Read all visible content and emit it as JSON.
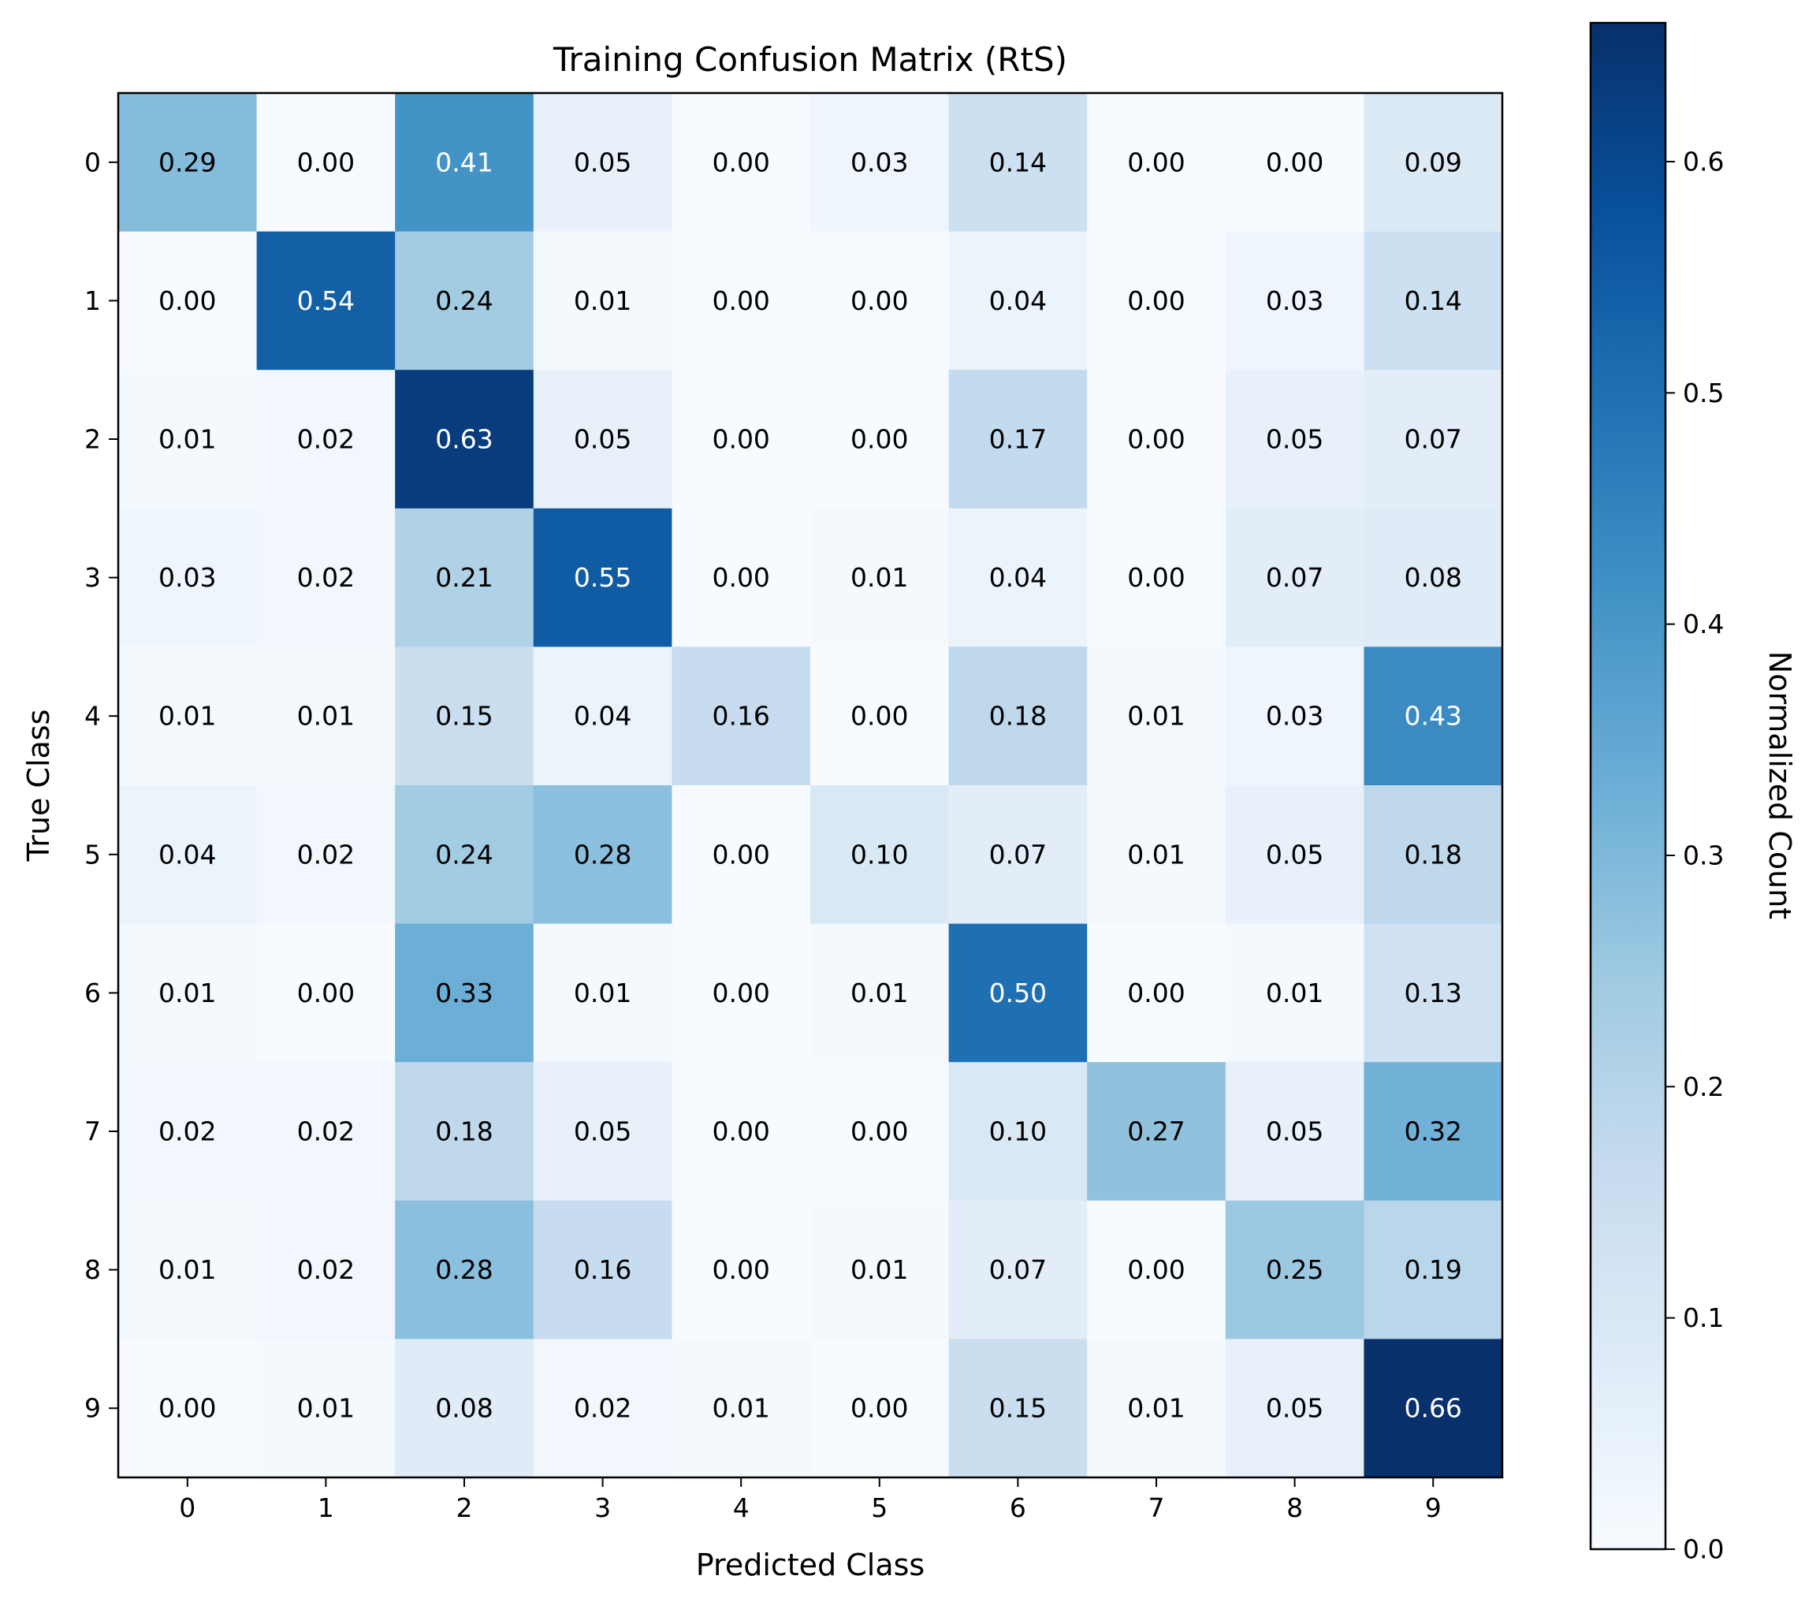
{
  "chart_data": {
    "type": "heatmap",
    "title": "Training Confusion Matrix (RtS)",
    "xlabel": "Predicted Class",
    "ylabel": "True Class",
    "x_categories": [
      "0",
      "1",
      "2",
      "3",
      "4",
      "5",
      "6",
      "7",
      "8",
      "9"
    ],
    "y_categories": [
      "0",
      "1",
      "2",
      "3",
      "4",
      "5",
      "6",
      "7",
      "8",
      "9"
    ],
    "values": [
      [
        0.29,
        0.0,
        0.41,
        0.05,
        0.0,
        0.03,
        0.14,
        0.0,
        0.0,
        0.09
      ],
      [
        0.0,
        0.54,
        0.24,
        0.01,
        0.0,
        0.0,
        0.04,
        0.0,
        0.03,
        0.14
      ],
      [
        0.01,
        0.02,
        0.63,
        0.05,
        0.0,
        0.0,
        0.17,
        0.0,
        0.05,
        0.07
      ],
      [
        0.03,
        0.02,
        0.21,
        0.55,
        0.0,
        0.01,
        0.04,
        0.0,
        0.07,
        0.08
      ],
      [
        0.01,
        0.01,
        0.15,
        0.04,
        0.16,
        0.0,
        0.18,
        0.01,
        0.03,
        0.43
      ],
      [
        0.04,
        0.02,
        0.24,
        0.28,
        0.0,
        0.1,
        0.07,
        0.01,
        0.05,
        0.18
      ],
      [
        0.01,
        0.0,
        0.33,
        0.01,
        0.0,
        0.01,
        0.5,
        0.0,
        0.01,
        0.13
      ],
      [
        0.02,
        0.02,
        0.18,
        0.05,
        0.0,
        0.0,
        0.1,
        0.27,
        0.05,
        0.32
      ],
      [
        0.01,
        0.02,
        0.28,
        0.16,
        0.0,
        0.01,
        0.07,
        0.0,
        0.25,
        0.19
      ],
      [
        0.0,
        0.01,
        0.08,
        0.02,
        0.01,
        0.0,
        0.15,
        0.01,
        0.05,
        0.66
      ]
    ],
    "colormap": "Blues",
    "colormap_stops": [
      "#f7fbff",
      "#deebf7",
      "#c6dbef",
      "#9ecae1",
      "#6baed6",
      "#4292c6",
      "#2171b5",
      "#08519c",
      "#08306b"
    ],
    "vmin": 0.0,
    "vmax": 0.66,
    "colorbar": {
      "label": "Normalized Count",
      "ticks": [
        0.0,
        0.1,
        0.2,
        0.3,
        0.4,
        0.5,
        0.6
      ],
      "tick_labels": [
        "0.0",
        "0.1",
        "0.2",
        "0.3",
        "0.4",
        "0.5",
        "0.6"
      ],
      "placement": "right"
    },
    "text_color_dark": "#000000",
    "text_color_light": "#ffffff"
  }
}
